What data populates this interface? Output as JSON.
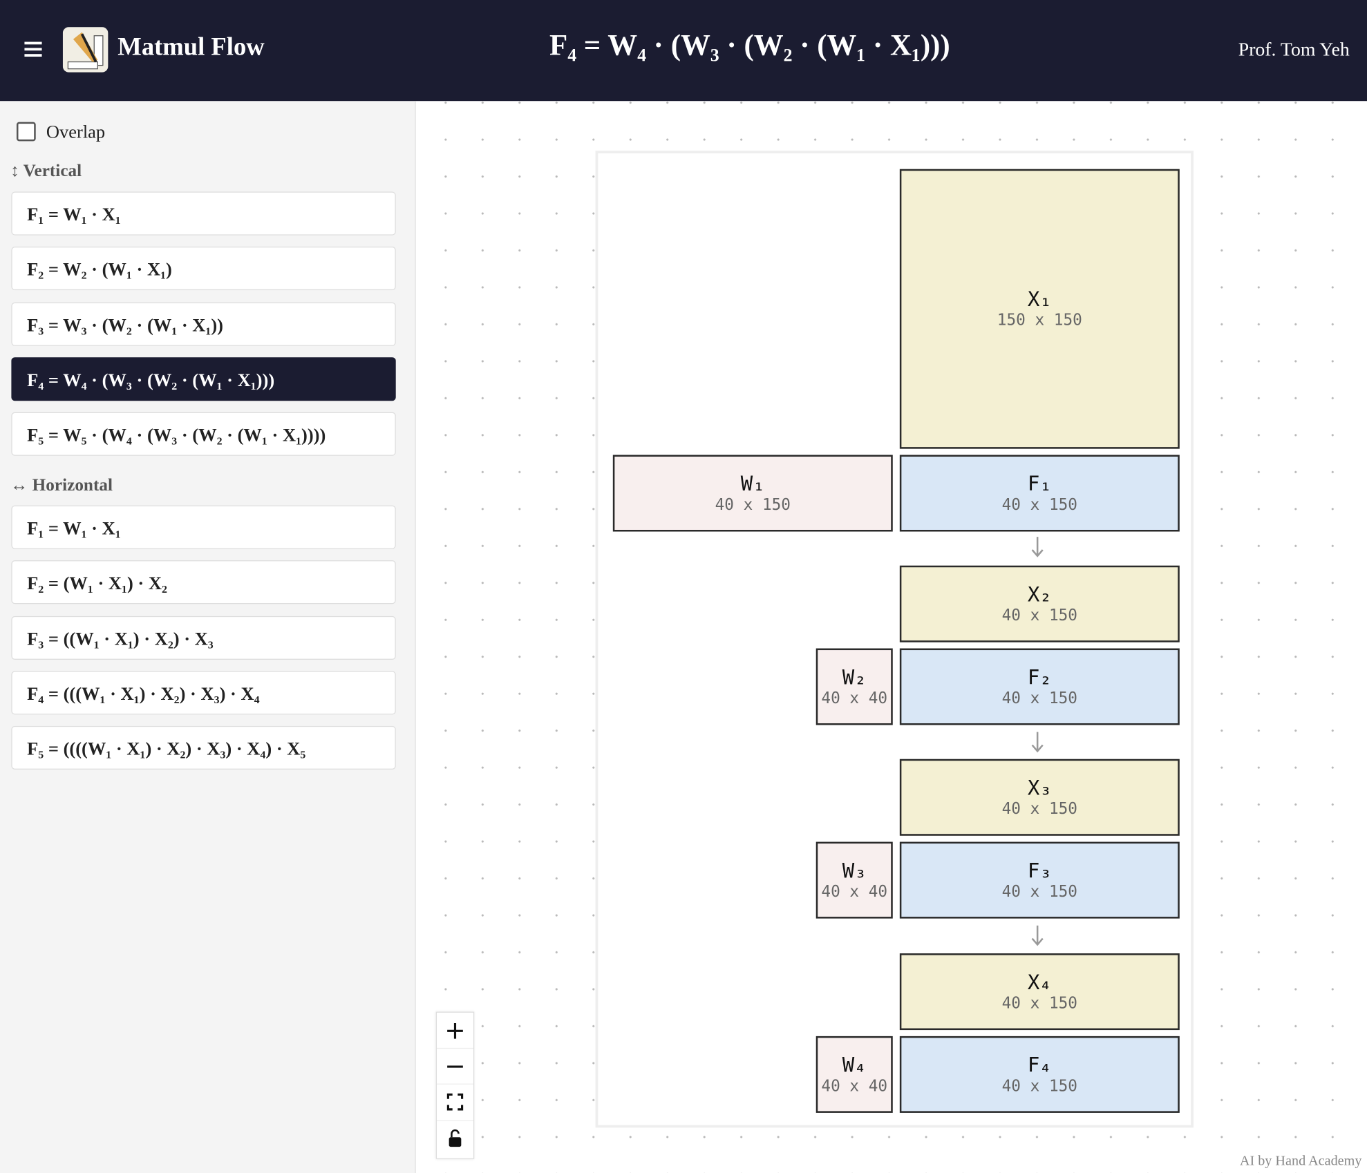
{
  "header": {
    "title": "Matmul Flow",
    "formula": "F₄ = W₄ · (W₃ · (W₂ · (W₁ · X₁)))",
    "author": "Prof. Tom Yeh"
  },
  "sidebar": {
    "overlap": "Overlap",
    "vertical": {
      "label": "↕ Vertical",
      "items": [
        "F₁ = W₁ · X₁",
        "F₂ = W₂ · (W₁ · X₁)",
        "F₃ = W₃ · (W₂ · (W₁ · X₁))",
        "F₄ = W₄ · (W₃ · (W₂ · (W₁ · X₁)))",
        "F₅ = W₅ · (W₄ · (W₃ · (W₂ · (W₁ · X₁))))"
      ]
    },
    "horizontal": {
      "label": "↔ Horizontal",
      "items": [
        "F₁ = W₁ · X₁",
        "F₂ = (W₁ · X₁) · X₂",
        "F₃ = ((W₁ · X₁) · X₂) · X₃",
        "F₄ = (((W₁ · X₁) · X₂) · X₃) · X₄",
        "F₅ = ((((W₁ · X₁) · X₂) · X₃) · X₄) · X₅"
      ]
    }
  },
  "canvas": {
    "blocks": [
      {
        "name": "X₁",
        "size": "150 x 150"
      },
      {
        "name": "W₁",
        "size": "40 x 150"
      },
      {
        "name": "F₁",
        "size": "40 x 150"
      },
      {
        "name": "X₂",
        "size": "40 x 150"
      },
      {
        "name": "W₂",
        "size": "40 x 40"
      },
      {
        "name": "F₂",
        "size": "40 x 150"
      },
      {
        "name": "X₃",
        "size": "40 x 150"
      },
      {
        "name": "W₃",
        "size": "40 x 40"
      },
      {
        "name": "F₃",
        "size": "40 x 150"
      },
      {
        "name": "X₄",
        "size": "40 x 150"
      },
      {
        "name": "W₄",
        "size": "40 x 40"
      },
      {
        "name": "F₄",
        "size": "40 x 150"
      }
    ]
  },
  "footer": "AI by Hand Academy"
}
